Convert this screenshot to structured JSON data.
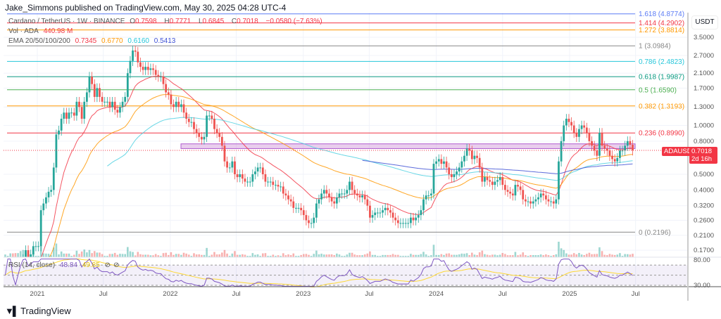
{
  "header": {
    "published": "Jake_Simmons published on TradingView.com, May 30, 2025 04:28 UTC-4"
  },
  "legend": {
    "symbol": "Cardano / TetherUS · 1W · BINANCE",
    "o_label": "O",
    "o": "0.7598",
    "h_label": "H",
    "h": "0.7771",
    "l_label": "L",
    "l": "0.6845",
    "c_label": "C",
    "c": "0.7018",
    "change": "−0.0580 (−7.63%)",
    "vol_label": "Vol · ADA",
    "vol": "440.98 M",
    "ema_label": "EMA 20/50/100/200",
    "ema": [
      "0.7345",
      "0.6770",
      "0.6160",
      "0.5413"
    ],
    "rsi_label": "RSI (14, close)",
    "rsi": "48.84",
    "rsi_ma": "49.85"
  },
  "colors": {
    "up": "#26a69a",
    "down": "#ef5350",
    "ema": [
      "#f23645",
      "#ff9800",
      "#4dd0e1",
      "#3f51d5"
    ],
    "rsi": "#7e57c2",
    "rsi_ma": "#fdd835",
    "box": "#ce93d8"
  },
  "price_tag": {
    "symbol": "ADAUSDT",
    "price": "0.7018",
    "countdown": "2d 16h"
  },
  "axis_unit": "USDT",
  "brand": "TradingView",
  "chart_data": {
    "type": "candlestick",
    "interval": "1W",
    "scale": "log",
    "y_ticks": [
      3.5,
      2.7,
      2.1,
      1.7,
      1.3,
      1.0,
      0.8,
      0.5,
      0.4,
      0.32,
      0.26,
      0.21,
      0.17
    ],
    "y_tick_labels": [
      "3.5000",
      "2.7000",
      "2.1000",
      "1.7000",
      "1.3000",
      "1.0000",
      "0.8000",
      "0.5000",
      "0.4000",
      "0.3200",
      "0.2600",
      "0.2100",
      "0.1700"
    ],
    "x_ticks": [
      "2021",
      "Jul",
      "2022",
      "Jul",
      "2023",
      "Jul",
      "2024",
      "Jul",
      "2025",
      "Jul"
    ],
    "x_tick_dates": [
      "2021-01-01",
      "2021-07-01",
      "2022-01-01",
      "2022-07-01",
      "2023-01-01",
      "2023-07-01",
      "2024-01-01",
      "2024-07-01",
      "2025-01-01",
      "2025-07-01"
    ],
    "first_week": "2020-10-05",
    "weekly_close": [
      0.1,
      0.1,
      0.11,
      0.1,
      0.09,
      0.1,
      0.12,
      0.15,
      0.17,
      0.15,
      0.16,
      0.18,
      0.18,
      0.18,
      0.3,
      0.33,
      0.36,
      0.39,
      0.4,
      0.55,
      0.88,
      0.93,
      1.1,
      1.2,
      1.1,
      1.2,
      1.2,
      1.15,
      1.4,
      1.3,
      1.1,
      1.4,
      1.6,
      2.0,
      1.8,
      1.5,
      1.7,
      1.5,
      1.4,
      1.4,
      1.4,
      1.3,
      1.4,
      1.25,
      1.2,
      1.3,
      1.4,
      1.5,
      2.1,
      2.5,
      2.9,
      2.85,
      2.45,
      2.3,
      2.2,
      2.3,
      2.2,
      2.25,
      2.2,
      2.05,
      2.0,
      2.0,
      1.8,
      1.6,
      1.55,
      1.35,
      1.3,
      1.4,
      1.3,
      1.35,
      1.2,
      1.1,
      1.05,
      1.05,
      0.95,
      0.9,
      0.85,
      0.82,
      0.85,
      1.15,
      1.15,
      1.1,
      0.95,
      0.9,
      0.85,
      0.75,
      0.6,
      0.55,
      0.55,
      0.6,
      0.5,
      0.48,
      0.5,
      0.47,
      0.45,
      0.45,
      0.45,
      0.5,
      0.52,
      0.55,
      0.55,
      0.5,
      0.45,
      0.45,
      0.45,
      0.43,
      0.43,
      0.42,
      0.42,
      0.38,
      0.37,
      0.35,
      0.34,
      0.31,
      0.31,
      0.31,
      0.3,
      0.28,
      0.26,
      0.25,
      0.25,
      0.27,
      0.33,
      0.35,
      0.38,
      0.4,
      0.38,
      0.36,
      0.34,
      0.33,
      0.36,
      0.38,
      0.38,
      0.38,
      0.4,
      0.45,
      0.4,
      0.38,
      0.37,
      0.36,
      0.37,
      0.35,
      0.32,
      0.27,
      0.28,
      0.29,
      0.29,
      0.29,
      0.3,
      0.31,
      0.3,
      0.29,
      0.27,
      0.26,
      0.25,
      0.25,
      0.25,
      0.25,
      0.25,
      0.27,
      0.26,
      0.27,
      0.28,
      0.3,
      0.35,
      0.37,
      0.37,
      0.38,
      0.58,
      0.6,
      0.62,
      0.58,
      0.6,
      0.55,
      0.5,
      0.48,
      0.5,
      0.52,
      0.55,
      0.6,
      0.65,
      0.72,
      0.7,
      0.62,
      0.65,
      0.63,
      0.55,
      0.45,
      0.48,
      0.46,
      0.45,
      0.43,
      0.45,
      0.46,
      0.48,
      0.43,
      0.4,
      0.39,
      0.38,
      0.37,
      0.43,
      0.42,
      0.4,
      0.35,
      0.34,
      0.34,
      0.33,
      0.34,
      0.35,
      0.36,
      0.38,
      0.37,
      0.35,
      0.34,
      0.34,
      0.33,
      0.35,
      0.6,
      0.8,
      1.0,
      1.1,
      1.05,
      1.0,
      0.9,
      0.85,
      0.95,
      1.0,
      0.97,
      0.9,
      0.8,
      0.75,
      0.7,
      0.65,
      0.9,
      0.75,
      0.72,
      0.7,
      0.65,
      0.62,
      0.6,
      0.63,
      0.7,
      0.7,
      0.75,
      0.8,
      0.76,
      0.7018
    ],
    "fib_levels": [
      {
        "label": "1.618 (4.8774)",
        "price": 4.8774,
        "color": "#5b7bf5"
      },
      {
        "label": "1.414 (4.2902)",
        "price": 4.2902,
        "color": "#f23645"
      },
      {
        "label": "1.272 (3.8814)",
        "price": 3.8814,
        "color": "#ff9800"
      },
      {
        "label": "1 (3.0984)",
        "price": 3.0984,
        "color": "#888888"
      },
      {
        "label": "0.786 (2.4823)",
        "price": 2.4823,
        "color": "#26c6da"
      },
      {
        "label": "0.618 (1.9987)",
        "price": 1.9987,
        "color": "#089981"
      },
      {
        "label": "0.5 (1.6590)",
        "price": 1.659,
        "color": "#4caf50"
      },
      {
        "label": "0.382 (1.3193)",
        "price": 1.3193,
        "color": "#ff9800"
      },
      {
        "label": "0.236 (0.8990)",
        "price": 0.899,
        "color": "#f23645"
      },
      {
        "label": "0 (0.2196)",
        "price": 0.2196,
        "color": "#888888"
      }
    ],
    "resistance_zone": [
      0.72,
      0.77
    ],
    "rsi_ticks": [
      "80.00",
      "30.00"
    ],
    "rsi_bands": [
      70,
      50,
      30
    ]
  }
}
